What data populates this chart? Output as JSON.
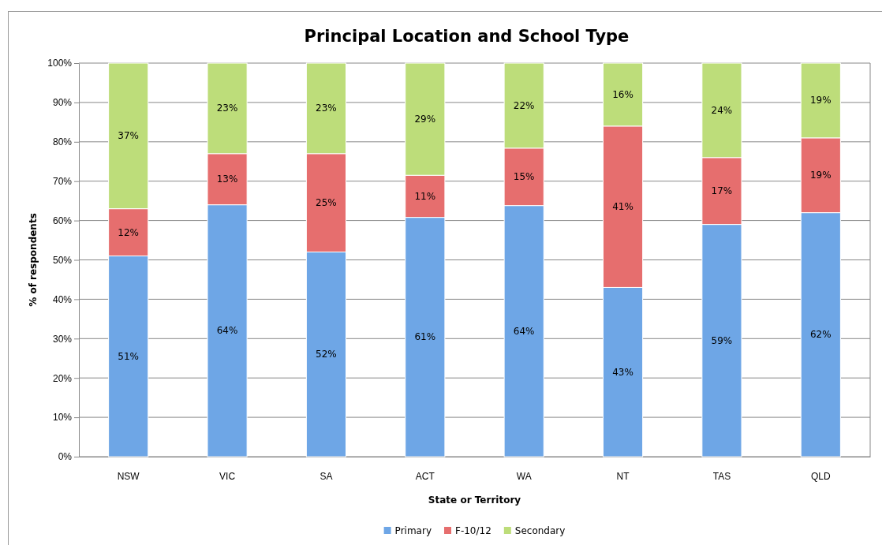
{
  "chart_data": {
    "type": "bar",
    "title": "Principal Location and School Type",
    "xlabel": "State or Territory",
    "ylabel": "% of respondents",
    "categories": [
      "NSW",
      "VIC",
      "SA",
      "ACT",
      "WA",
      "NT",
      "TAS",
      "QLD"
    ],
    "stacked": true,
    "ylim": [
      0,
      100
    ],
    "yticks": [
      {
        "value": 0,
        "label": "0%"
      },
      {
        "value": 10,
        "label": "10%"
      },
      {
        "value": 20,
        "label": "20%"
      },
      {
        "value": 30,
        "label": "30%"
      },
      {
        "value": 40,
        "label": "40%"
      },
      {
        "value": 50,
        "label": "50%"
      },
      {
        "value": 60,
        "label": "60%"
      },
      {
        "value": 70,
        "label": "70%"
      },
      {
        "value": 80,
        "label": "80%"
      },
      {
        "value": 90,
        "label": "90%"
      },
      {
        "value": 100,
        "label": "100%"
      }
    ],
    "grid": "y",
    "legend": "bottom",
    "series": [
      {
        "name": "Primary",
        "color": "#6ea6e6",
        "values": [
          51,
          64,
          52,
          60.8,
          63.8,
          43,
          59,
          62
        ],
        "value_labels": [
          "51%",
          "64%",
          "52%",
          "61%",
          "64%",
          "43%",
          "59%",
          "62%"
        ]
      },
      {
        "name": "F-10/12",
        "color": "#e66e6e",
        "values": [
          12,
          13,
          25,
          10.7,
          14.6,
          41,
          17,
          19
        ],
        "value_labels": [
          "12%",
          "13%",
          "25%",
          "11%",
          "15%",
          "41%",
          "17%",
          "19%"
        ]
      },
      {
        "name": "Secondary",
        "color": "#bddd7a",
        "values": [
          37,
          23,
          23,
          28.5,
          21.6,
          16,
          24,
          19
        ],
        "value_labels": [
          "37%",
          "23%",
          "23%",
          "29%",
          "22%",
          "16%",
          "24%",
          "19%"
        ]
      }
    ]
  }
}
